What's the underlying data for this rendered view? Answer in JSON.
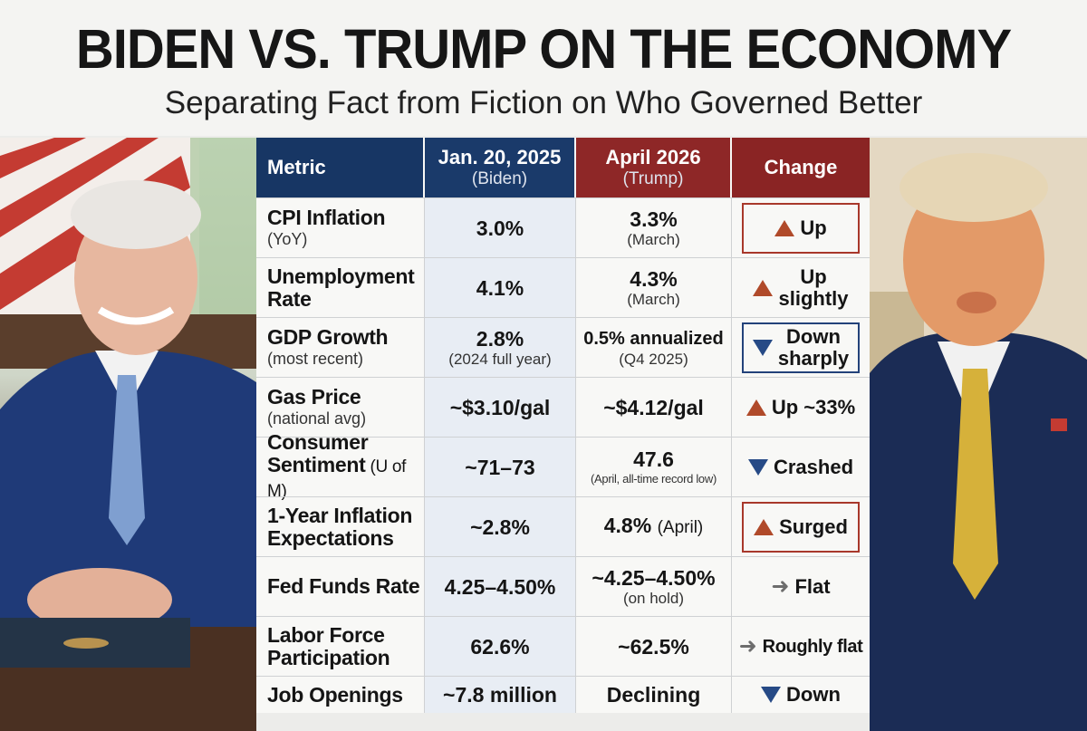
{
  "header": {
    "title": "BIDEN VS. TRUMP ON THE ECONOMY",
    "subtitle": "Separating Fact from Fiction on Who Governed Better"
  },
  "colors": {
    "biden_header": "#1a3a6a",
    "trump_header": "#8e2727",
    "up_arrow": "#b04a2a",
    "down_arrow": "#264a86"
  },
  "table": {
    "headers": {
      "metric": "Metric",
      "biden": "Jan. 20, 2025",
      "biden_sub": "(Biden)",
      "trump": "April 2026",
      "trump_sub": "(Trump)",
      "change": "Change"
    },
    "rows": [
      {
        "metric": "CPI Inflation",
        "metric_sub": "(YoY)",
        "biden": "3.0%",
        "biden_sub": "",
        "trump": "3.3%",
        "trump_sub": "(March)",
        "change": "Up",
        "direction": "up-icon"
      },
      {
        "metric": "Unemployment",
        "metric_sub": "Rate",
        "biden": "4.1%",
        "biden_sub": "",
        "trump": "4.3%",
        "trump_sub": "(March)",
        "change": "Up",
        "change2": "slightly",
        "direction": "up-icon"
      },
      {
        "metric": "GDP Growth",
        "metric_sub": "(most recent)",
        "biden": "2.8%",
        "biden_sub": "(2024 full year)",
        "trump": "0.5% annualized",
        "trump_sub": "(Q4 2025)",
        "change": "Down",
        "change2": "sharply",
        "direction": "down-icon"
      },
      {
        "metric": "Gas Price",
        "metric_sub": "(national avg)",
        "biden": "~$3.10/gal",
        "biden_sub": "",
        "trump": "~$4.12/gal",
        "trump_sub": "",
        "change": "Up ~33%",
        "direction": "up-icon"
      },
      {
        "metric": "Consumer",
        "metric_sub": "Sentiment",
        "metric_sub2": " (U of M)",
        "biden": "~71–73",
        "biden_sub": "",
        "trump": "47.6",
        "trump_sub": "(April, all-time record low)",
        "change": "Crashed",
        "direction": "down-icon"
      },
      {
        "metric": "1-Year Inflation",
        "metric_sub": "Expectations",
        "biden": "~2.8%",
        "biden_sub": "",
        "trump": "4.8%",
        "trump_sub": "(April)",
        "change": "Surged",
        "direction": "up-icon"
      },
      {
        "metric": "Fed Funds Rate",
        "metric_sub": "",
        "biden": "4.25–4.50%",
        "biden_sub": "",
        "trump": "~4.25–4.50%",
        "trump_sub": "(on hold)",
        "change": "Flat",
        "direction": "right-arrow-icon"
      },
      {
        "metric": "Labor Force",
        "metric_sub": "Participation",
        "biden": "62.6%",
        "biden_sub": "",
        "trump": "~62.5%",
        "trump_sub": "",
        "change": "Roughly flat",
        "direction": "right-arrow-icon"
      },
      {
        "metric": "Job Openings",
        "metric_sub": "",
        "biden": "~7.8 million",
        "biden_sub": "",
        "trump": "Declining",
        "trump_sub": "",
        "change": "Down",
        "direction": "down-icon"
      }
    ]
  }
}
